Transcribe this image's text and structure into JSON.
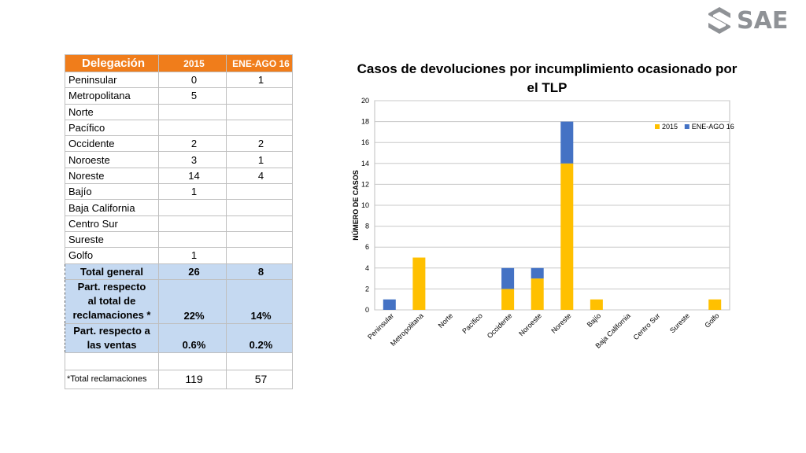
{
  "logo": {
    "text": "SAE",
    "icon": "sae-logo-icon"
  },
  "table": {
    "headers": [
      "Delegación",
      "2015",
      "ENE-AGO 16"
    ],
    "rows": [
      [
        "Peninsular",
        "0",
        "1"
      ],
      [
        "Metropolitana",
        "5",
        ""
      ],
      [
        "Norte",
        "",
        ""
      ],
      [
        "Pacífico",
        "",
        ""
      ],
      [
        "Occidente",
        "2",
        "2"
      ],
      [
        "Noroeste",
        "3",
        "1"
      ],
      [
        "Noreste",
        "14",
        "4"
      ],
      [
        "Bajío",
        "1",
        ""
      ],
      [
        "Baja California",
        "",
        ""
      ],
      [
        "Centro Sur",
        "",
        ""
      ],
      [
        "Sureste",
        "",
        ""
      ],
      [
        "Golfo",
        "1",
        ""
      ]
    ],
    "total": [
      "Total general",
      "26",
      "8"
    ],
    "part_reclamaciones": [
      "Part. respecto\nal total de\nreclamaciones *",
      "22%",
      "14%"
    ],
    "part_ventas": [
      "Part. respecto a\nlas ventas",
      "0.6%",
      "0.2%"
    ],
    "footer": [
      "*Total reclamaciones",
      "119",
      "57"
    ],
    "colors": {
      "header": "#f07d1b",
      "summary": "#c5d9f1"
    }
  },
  "chart_data": {
    "type": "bar",
    "stacked": true,
    "title": "Casos de devoluciones por incumplimiento ocasionado por el TLP",
    "ylabel": "NÚMERO DE CASOS",
    "xlabel": "",
    "ylim": [
      0,
      20
    ],
    "yticks": [
      0,
      2,
      4,
      6,
      8,
      10,
      12,
      14,
      16,
      18,
      20
    ],
    "grid": true,
    "legend": "top-right",
    "categories": [
      "Peninsular",
      "Metropolitana",
      "Norte",
      "Pacífico",
      "Occidente",
      "Noroeste",
      "Noreste",
      "Bajío",
      "Baja California",
      "Centro Sur",
      "Sureste",
      "Golfo"
    ],
    "series": [
      {
        "name": "2015",
        "color": "#ffc000",
        "values": [
          0,
          5,
          0,
          0,
          2,
          3,
          14,
          1,
          0,
          0,
          0,
          1
        ]
      },
      {
        "name": "ENE-AGO 16",
        "color": "#4472c4",
        "values": [
          1,
          0,
          0,
          0,
          2,
          1,
          4,
          0,
          0,
          0,
          0,
          0
        ]
      }
    ]
  }
}
